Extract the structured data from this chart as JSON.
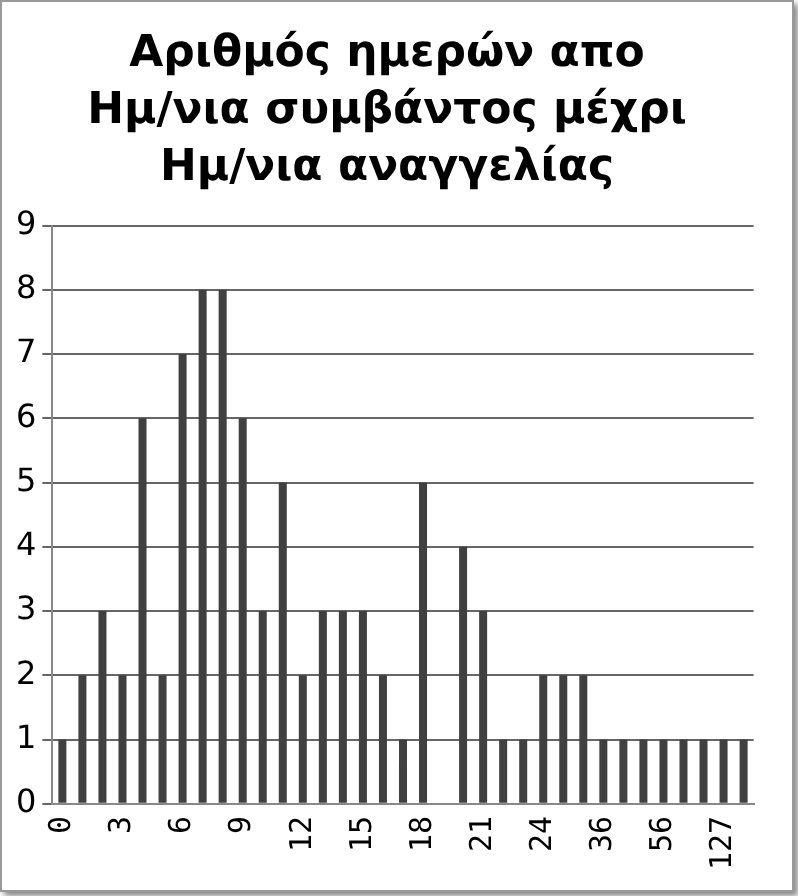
{
  "chart_data": {
    "type": "bar",
    "title": "Αριθμός ημερών απο Ημ/νια συμβάντος μέχρι Ημ/νια αναγγελίας",
    "categories": [
      "0",
      null,
      null,
      "3",
      null,
      null,
      "6",
      null,
      null,
      "9",
      null,
      null,
      "12",
      null,
      null,
      "15",
      null,
      null,
      "18",
      null,
      null,
      "21",
      null,
      null,
      "24",
      null,
      null,
      "36",
      null,
      null,
      "56",
      null,
      null,
      "127",
      null
    ],
    "values": [
      1,
      2,
      3,
      2,
      6,
      2,
      7,
      8,
      8,
      6,
      3,
      5,
      2,
      3,
      3,
      3,
      2,
      1,
      5,
      0,
      4,
      3,
      1,
      1,
      2,
      2,
      2,
      1,
      1,
      1,
      1,
      1,
      1,
      1,
      1
    ],
    "color": "#404040",
    "ylim": [
      0,
      9
    ],
    "yticks": [
      0,
      1,
      2,
      3,
      4,
      5,
      6,
      7,
      8,
      9
    ],
    "grid": "y",
    "legend": false
  }
}
